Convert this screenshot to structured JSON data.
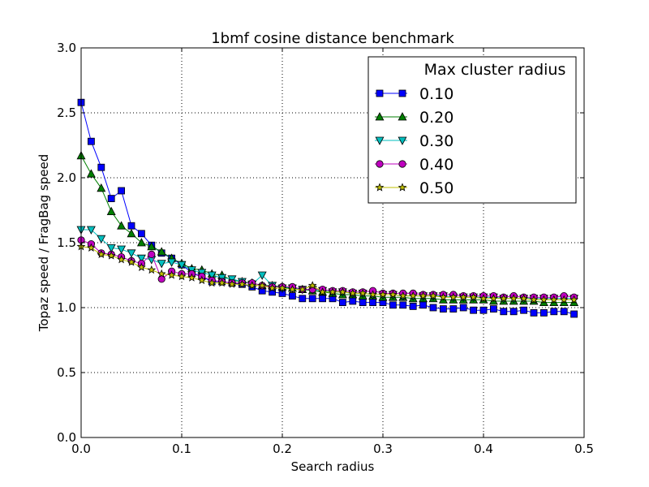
{
  "chart_data": {
    "type": "line",
    "title": "1bmf cosine distance benchmark",
    "xlabel": "Search radius",
    "ylabel": "Topaz speed / FragBag speed",
    "xlim": [
      0.0,
      0.5
    ],
    "ylim": [
      0.0,
      3.0
    ],
    "xticks": [
      "0.0",
      "0.1",
      "0.2",
      "0.3",
      "0.4",
      "0.5"
    ],
    "yticks": [
      "0.0",
      "0.5",
      "1.0",
      "1.5",
      "2.0",
      "2.5",
      "3.0"
    ],
    "grid": true,
    "legend_position": "top-right",
    "legend_title": "Max cluster radius",
    "x": [
      0.0,
      0.01,
      0.02,
      0.03,
      0.04,
      0.05,
      0.06,
      0.07,
      0.08,
      0.09,
      0.1,
      0.11,
      0.12,
      0.13,
      0.14,
      0.15,
      0.16,
      0.17,
      0.18,
      0.19,
      0.2,
      0.21,
      0.22,
      0.23,
      0.24,
      0.25,
      0.26,
      0.27,
      0.28,
      0.29,
      0.3,
      0.31,
      0.32,
      0.33,
      0.34,
      0.35,
      0.36,
      0.37,
      0.38,
      0.39,
      0.4,
      0.41,
      0.42,
      0.43,
      0.44,
      0.45,
      0.46,
      0.47,
      0.48,
      0.49
    ],
    "series": [
      {
        "name": "0.10",
        "color": "#0000ff",
        "marker": "square",
        "values": [
          2.58,
          2.28,
          2.08,
          1.84,
          1.9,
          1.63,
          1.57,
          1.48,
          1.42,
          1.38,
          1.33,
          1.27,
          1.24,
          1.2,
          1.2,
          1.19,
          1.18,
          1.16,
          1.13,
          1.12,
          1.11,
          1.09,
          1.07,
          1.07,
          1.07,
          1.07,
          1.04,
          1.05,
          1.04,
          1.04,
          1.04,
          1.02,
          1.02,
          1.01,
          1.02,
          1.0,
          0.99,
          0.99,
          1.0,
          0.98,
          0.98,
          0.99,
          0.97,
          0.97,
          0.98,
          0.96,
          0.96,
          0.97,
          0.97,
          0.95
        ]
      },
      {
        "name": "0.20",
        "color": "#007f00",
        "marker": "triangle-up",
        "values": [
          2.17,
          2.03,
          1.92,
          1.74,
          1.63,
          1.57,
          1.5,
          1.47,
          1.43,
          1.38,
          1.34,
          1.3,
          1.29,
          1.26,
          1.25,
          1.21,
          1.2,
          1.19,
          1.17,
          1.17,
          1.16,
          1.15,
          1.14,
          1.13,
          1.12,
          1.11,
          1.1,
          1.1,
          1.09,
          1.09,
          1.08,
          1.08,
          1.08,
          1.07,
          1.07,
          1.07,
          1.06,
          1.06,
          1.06,
          1.06,
          1.06,
          1.05,
          1.05,
          1.05,
          1.05,
          1.05,
          1.04,
          1.04,
          1.04,
          1.04
        ]
      },
      {
        "name": "0.30",
        "color": "#00bfbf",
        "marker": "triangle-down",
        "values": [
          1.6,
          1.6,
          1.53,
          1.46,
          1.45,
          1.42,
          1.38,
          1.37,
          1.34,
          1.35,
          1.33,
          1.29,
          1.27,
          1.25,
          1.23,
          1.22,
          1.2,
          1.18,
          1.25,
          1.17,
          1.15,
          1.15,
          1.14,
          1.14,
          1.13,
          1.12,
          1.12,
          1.11,
          1.11,
          1.1,
          1.1,
          1.1,
          1.09,
          1.09,
          1.09,
          1.09,
          1.09,
          1.08,
          1.08,
          1.08,
          1.08,
          1.08,
          1.07,
          1.07,
          1.07,
          1.07,
          1.07,
          1.07,
          1.07,
          1.07
        ]
      },
      {
        "name": "0.40",
        "color": "#bf00bf",
        "marker": "circle",
        "values": [
          1.52,
          1.49,
          1.42,
          1.41,
          1.39,
          1.36,
          1.34,
          1.41,
          1.22,
          1.28,
          1.26,
          1.26,
          1.24,
          1.21,
          1.2,
          1.19,
          1.19,
          1.19,
          1.17,
          1.16,
          1.16,
          1.16,
          1.14,
          1.14,
          1.14,
          1.13,
          1.13,
          1.12,
          1.12,
          1.13,
          1.11,
          1.11,
          1.11,
          1.11,
          1.1,
          1.1,
          1.1,
          1.1,
          1.09,
          1.09,
          1.09,
          1.09,
          1.08,
          1.09,
          1.08,
          1.08,
          1.08,
          1.08,
          1.09,
          1.08
        ]
      },
      {
        "name": "0.50",
        "color": "#bfbf00",
        "marker": "star",
        "values": [
          1.47,
          1.46,
          1.41,
          1.4,
          1.37,
          1.35,
          1.31,
          1.29,
          1.26,
          1.25,
          1.24,
          1.23,
          1.21,
          1.19,
          1.19,
          1.18,
          1.18,
          1.17,
          1.17,
          1.15,
          1.15,
          1.14,
          1.14,
          1.17,
          1.12,
          1.12,
          1.12,
          1.11,
          1.11,
          1.1,
          1.1,
          1.1,
          1.09,
          1.09,
          1.09,
          1.09,
          1.08,
          1.08,
          1.08,
          1.08,
          1.07,
          1.07,
          1.07,
          1.07,
          1.07,
          1.06,
          1.06,
          1.06,
          1.06,
          1.06
        ]
      }
    ]
  }
}
